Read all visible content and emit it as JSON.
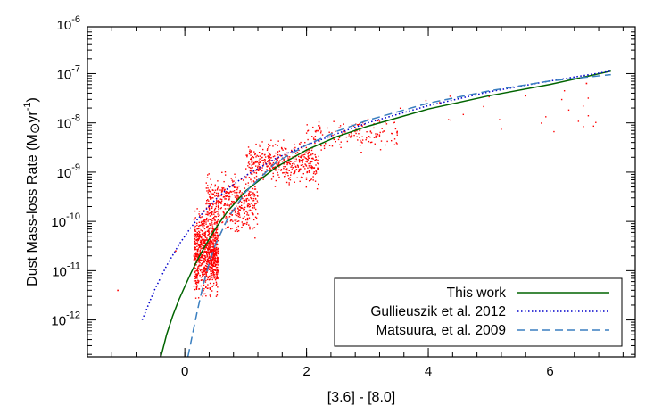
{
  "chart_data": {
    "type": "scatter",
    "title": "",
    "xlabel": "[3.6] - [8.0]",
    "ylabel": {
      "main": "Dust Mass-loss Rate (M",
      "sun_symbol": "⊙",
      "unit": "yr",
      "exp": "-1",
      "close": ")"
    },
    "xlim": [
      -1.6,
      7.4
    ],
    "ylim_log10": [
      -12.75,
      -6.05
    ],
    "y_scale": "log",
    "x_ticks": [
      0,
      2,
      4,
      6
    ],
    "x_tick_labels": [
      "0",
      "2",
      "4",
      "6"
    ],
    "y_ticks_log10": [
      -12,
      -11,
      -10,
      -9,
      -8,
      -7,
      -6
    ],
    "y_tick_labels": [
      {
        "base": "10",
        "exp": "-12"
      },
      {
        "base": "10",
        "exp": "-11"
      },
      {
        "base": "10",
        "exp": "-10"
      },
      {
        "base": "10",
        "exp": "-9"
      },
      {
        "base": "10",
        "exp": "-8"
      },
      {
        "base": "10",
        "exp": "-7"
      },
      {
        "base": "10",
        "exp": "-6"
      }
    ],
    "legend_position": "bottom-right",
    "series": [
      {
        "name": "This work",
        "style": "solid",
        "color": "#006400",
        "x": [
          -0.4,
          -0.3,
          -0.2,
          -0.1,
          0.0,
          0.1,
          0.2,
          0.3,
          0.5,
          0.7,
          1.0,
          1.5,
          2.0,
          2.5,
          3.0,
          4.0,
          5.0,
          6.0,
          7.0
        ],
        "log_y": [
          -12.78,
          -12.3,
          -11.92,
          -11.6,
          -11.32,
          -11.05,
          -10.8,
          -10.57,
          -10.15,
          -9.8,
          -9.38,
          -8.9,
          -8.55,
          -8.28,
          -8.07,
          -7.72,
          -7.45,
          -7.22,
          -6.95
        ]
      },
      {
        "name": "Gullieuszik et al. 2012",
        "style": "dotted",
        "color": "#0000cc",
        "x": [
          -0.7,
          -0.5,
          -0.3,
          -0.1,
          0.1,
          0.3,
          0.5,
          0.7,
          1.0,
          1.5,
          2.0,
          2.5,
          3.0,
          4.0,
          5.0,
          6.0,
          7.0
        ],
        "log_y": [
          -12.0,
          -11.4,
          -10.9,
          -10.48,
          -10.12,
          -9.82,
          -9.56,
          -9.34,
          -9.07,
          -8.72,
          -8.45,
          -8.22,
          -8.0,
          -7.65,
          -7.37,
          -7.15,
          -6.95
        ]
      },
      {
        "name": "Matsuura, et al. 2009",
        "style": "dashed",
        "color": "#3a7fc0",
        "x": [
          0.05,
          0.1,
          0.2,
          0.3,
          0.4,
          0.5,
          0.7,
          1.0,
          1.5,
          2.0,
          2.5,
          3.0,
          4.0,
          5.0,
          6.0,
          7.0
        ],
        "log_y": [
          -12.75,
          -12.45,
          -11.85,
          -11.3,
          -10.85,
          -10.48,
          -9.95,
          -9.4,
          -8.8,
          -8.45,
          -8.17,
          -7.95,
          -7.6,
          -7.35,
          -7.15,
          -7.02
        ]
      }
    ],
    "scatter": {
      "name": "",
      "color": "#ff0000",
      "seed": 7,
      "clusters": [
        {
          "x_min": 0.15,
          "x_max": 0.55,
          "log_y_min": -11.7,
          "log_y_max": -9.6,
          "count": 900
        },
        {
          "x_min": 0.35,
          "x_max": 1.2,
          "log_y_min": -10.4,
          "log_y_max": -8.9,
          "count": 450
        },
        {
          "x_min": 1.0,
          "x_max": 2.2,
          "log_y_min": -9.4,
          "log_y_max": -8.2,
          "count": 450
        },
        {
          "x_min": 2.0,
          "x_max": 3.5,
          "log_y_min": -8.7,
          "log_y_max": -7.8,
          "count": 150
        },
        {
          "x_min": 3.5,
          "x_max": 7.0,
          "log_y_min": -8.3,
          "log_y_max": -7.2,
          "count": 25
        }
      ],
      "outliers": [
        {
          "x": -1.1,
          "log_y": -11.4
        },
        {
          "x": -0.15,
          "log_y": -10.6
        },
        {
          "x": 0.9,
          "log_y": -9.7
        },
        {
          "x": 2.9,
          "log_y": -8.6
        },
        {
          "x": 4.2,
          "log_y": -7.6
        },
        {
          "x": 5.6,
          "log_y": -7.45
        },
        {
          "x": 6.6,
          "log_y": -7.2
        }
      ]
    }
  }
}
